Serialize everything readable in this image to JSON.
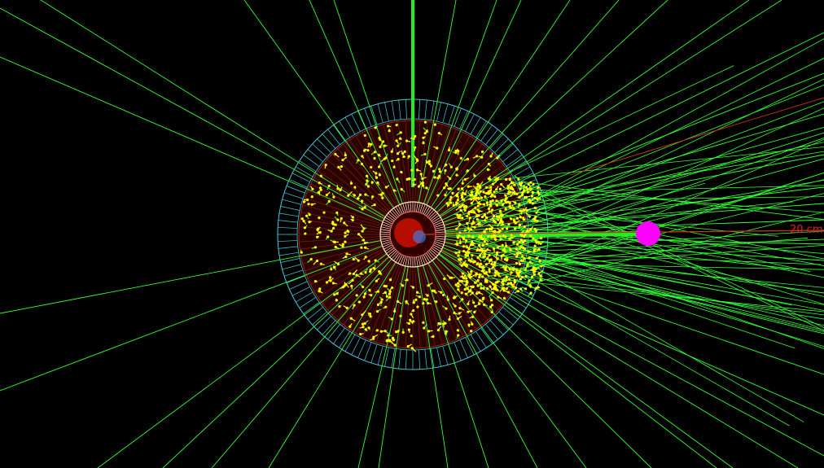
{
  "scene": {
    "background": "#000000",
    "scale_label": "20 cm",
    "colors": {
      "track": "#33ff33",
      "track_bright": "#22ee22",
      "hit": "#ffff00",
      "calorimeter_ring": "#44ccdd",
      "calorimeter_cell": "#aa2211",
      "inner_detector": "#ffeecc",
      "vertex": "#ff00ff",
      "beam_line": "#cc3322",
      "scale_text": "#dd2222"
    }
  }
}
